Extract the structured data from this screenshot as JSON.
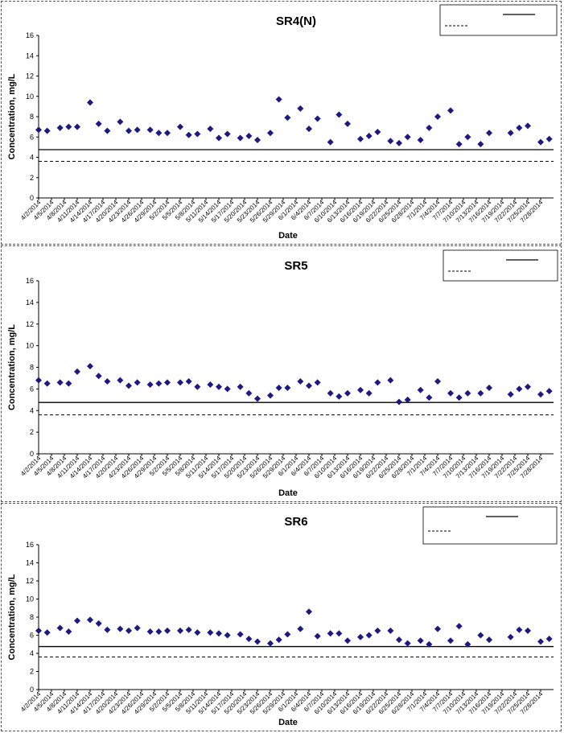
{
  "chart_data": [
    {
      "type": "scatter",
      "title": "SR4(N)",
      "xlabel": "Date",
      "ylabel": "Concentration, mg/L",
      "ylim": [
        0,
        16
      ],
      "yticks": [
        "0",
        "2",
        "4",
        "6",
        "8",
        "10",
        "12",
        "14",
        "16"
      ],
      "grid": false,
      "legend": "top-right",
      "marker_color": "#1a1a80",
      "reference_lines": [
        {
          "style": "solid",
          "value": 4.75
        },
        {
          "style": "dashed",
          "value": 3.6
        }
      ],
      "x_tick_labels": [
        "4/2/2014",
        "4/5/2014",
        "4/8/2014",
        "4/11/2014",
        "4/14/2014",
        "4/17/2014",
        "4/20/2014",
        "4/23/2014",
        "4/26/2014",
        "4/29/2014",
        "5/2/2014",
        "5/5/2014",
        "5/8/2014",
        "5/11/2014",
        "5/14/2014",
        "5/17/2014",
        "5/20/2014",
        "5/23/2014",
        "5/26/2014",
        "5/29/2014",
        "6/1/2014",
        "6/4/2014",
        "6/7/2014",
        "6/10/2014",
        "6/13/2014",
        "6/16/2014",
        "6/19/2014",
        "6/22/2014",
        "6/25/2014",
        "6/28/2014",
        "7/1/2014",
        "7/4/2014",
        "7/7/2014",
        "7/10/2014",
        "7/13/2014",
        "7/16/2014",
        "7/19/2014",
        "7/22/2014",
        "7/25/2014",
        "7/28/2014"
      ],
      "points": [
        {
          "x": "4/2/2014",
          "y": 6.7
        },
        {
          "x": "4/4/2014",
          "y": 6.6
        },
        {
          "x": "4/7/2014",
          "y": 6.9
        },
        {
          "x": "4/9/2014",
          "y": 7.0
        },
        {
          "x": "4/11/2014",
          "y": 7.0
        },
        {
          "x": "4/14/2014",
          "y": 9.4
        },
        {
          "x": "4/16/2014",
          "y": 7.3
        },
        {
          "x": "4/18/2014",
          "y": 6.6
        },
        {
          "x": "4/21/2014",
          "y": 7.5
        },
        {
          "x": "4/23/2014",
          "y": 6.6
        },
        {
          "x": "4/25/2014",
          "y": 6.7
        },
        {
          "x": "4/28/2014",
          "y": 6.7
        },
        {
          "x": "4/30/2014",
          "y": 6.4
        },
        {
          "x": "5/2/2014",
          "y": 6.4
        },
        {
          "x": "5/5/2014",
          "y": 7.0
        },
        {
          "x": "5/7/2014",
          "y": 6.2
        },
        {
          "x": "5/9/2014",
          "y": 6.3
        },
        {
          "x": "5/12/2014",
          "y": 6.8
        },
        {
          "x": "5/14/2014",
          "y": 5.9
        },
        {
          "x": "5/16/2014",
          "y": 6.3
        },
        {
          "x": "5/19/2014",
          "y": 5.9
        },
        {
          "x": "5/21/2014",
          "y": 6.1
        },
        {
          "x": "5/23/2014",
          "y": 5.7
        },
        {
          "x": "5/26/2014",
          "y": 6.4
        },
        {
          "x": "5/28/2014",
          "y": 9.7
        },
        {
          "x": "5/30/2014",
          "y": 7.9
        },
        {
          "x": "6/2/2014",
          "y": 8.8
        },
        {
          "x": "6/4/2014",
          "y": 6.8
        },
        {
          "x": "6/6/2014",
          "y": 7.8
        },
        {
          "x": "6/9/2014",
          "y": 5.5
        },
        {
          "x": "6/11/2014",
          "y": 8.2
        },
        {
          "x": "6/13/2014",
          "y": 7.3
        },
        {
          "x": "6/16/2014",
          "y": 5.8
        },
        {
          "x": "6/18/2014",
          "y": 6.1
        },
        {
          "x": "6/20/2014",
          "y": 6.5
        },
        {
          "x": "6/23/2014",
          "y": 5.6
        },
        {
          "x": "6/25/2014",
          "y": 5.4
        },
        {
          "x": "6/27/2014",
          "y": 6.0
        },
        {
          "x": "6/30/2014",
          "y": 5.7
        },
        {
          "x": "7/2/2014",
          "y": 6.9
        },
        {
          "x": "7/4/2014",
          "y": 8.0
        },
        {
          "x": "7/7/2014",
          "y": 8.6
        },
        {
          "x": "7/9/2014",
          "y": 5.3
        },
        {
          "x": "7/11/2014",
          "y": 6.0
        },
        {
          "x": "7/14/2014",
          "y": 5.3
        },
        {
          "x": "7/16/2014",
          "y": 6.4
        },
        {
          "x": "7/21/2014",
          "y": 6.4
        },
        {
          "x": "7/23/2014",
          "y": 6.9
        },
        {
          "x": "7/25/2014",
          "y": 7.1
        },
        {
          "x": "7/28/2014",
          "y": 5.5
        },
        {
          "x": "7/30/2014",
          "y": 5.8
        }
      ]
    },
    {
      "type": "scatter",
      "title": "SR5",
      "xlabel": "Date",
      "ylabel": "Concentration, mg/L",
      "ylim": [
        0,
        16
      ],
      "yticks": [
        "0",
        "2",
        "4",
        "6",
        "8",
        "10",
        "12",
        "14",
        "16"
      ],
      "grid": false,
      "legend": "top-right",
      "marker_color": "#1a1a80",
      "reference_lines": [
        {
          "style": "solid",
          "value": 4.75
        },
        {
          "style": "dashed",
          "value": 3.6
        }
      ],
      "x_tick_labels": [
        "4/2/2014",
        "4/5/2014",
        "4/8/2014",
        "4/11/2014",
        "4/14/2014",
        "4/17/2014",
        "4/20/2014",
        "4/23/2014",
        "4/26/2014",
        "4/29/2014",
        "5/2/2014",
        "5/5/2014",
        "5/8/2014",
        "5/11/2014",
        "5/14/2014",
        "5/17/2014",
        "5/20/2014",
        "5/23/2014",
        "5/26/2014",
        "5/29/2014",
        "6/1/2014",
        "6/4/2014",
        "6/7/2014",
        "6/10/2014",
        "6/13/2014",
        "6/16/2014",
        "6/19/2014",
        "6/22/2014",
        "6/25/2014",
        "6/28/2014",
        "7/1/2014",
        "7/4/2014",
        "7/7/2014",
        "7/10/2014",
        "7/13/2014",
        "7/16/2014",
        "7/19/2014",
        "7/22/2014",
        "7/25/2014",
        "7/28/2014"
      ],
      "points": [
        {
          "x": "4/2/2014",
          "y": 6.8
        },
        {
          "x": "4/4/2014",
          "y": 6.5
        },
        {
          "x": "4/7/2014",
          "y": 6.6
        },
        {
          "x": "4/9/2014",
          "y": 6.5
        },
        {
          "x": "4/11/2014",
          "y": 7.6
        },
        {
          "x": "4/14/2014",
          "y": 8.1
        },
        {
          "x": "4/16/2014",
          "y": 7.2
        },
        {
          "x": "4/18/2014",
          "y": 6.7
        },
        {
          "x": "4/21/2014",
          "y": 6.8
        },
        {
          "x": "4/23/2014",
          "y": 6.3
        },
        {
          "x": "4/25/2014",
          "y": 6.6
        },
        {
          "x": "4/28/2014",
          "y": 6.4
        },
        {
          "x": "4/30/2014",
          "y": 6.5
        },
        {
          "x": "5/2/2014",
          "y": 6.6
        },
        {
          "x": "5/5/2014",
          "y": 6.6
        },
        {
          "x": "5/7/2014",
          "y": 6.7
        },
        {
          "x": "5/9/2014",
          "y": 6.2
        },
        {
          "x": "5/12/2014",
          "y": 6.4
        },
        {
          "x": "5/14/2014",
          "y": 6.2
        },
        {
          "x": "5/16/2014",
          "y": 6.0
        },
        {
          "x": "5/19/2014",
          "y": 6.2
        },
        {
          "x": "5/21/2014",
          "y": 5.6
        },
        {
          "x": "5/23/2014",
          "y": 5.1
        },
        {
          "x": "5/26/2014",
          "y": 5.4
        },
        {
          "x": "5/28/2014",
          "y": 6.1
        },
        {
          "x": "5/30/2014",
          "y": 6.1
        },
        {
          "x": "6/2/2014",
          "y": 6.7
        },
        {
          "x": "6/4/2014",
          "y": 6.3
        },
        {
          "x": "6/6/2014",
          "y": 6.6
        },
        {
          "x": "6/9/2014",
          "y": 5.6
        },
        {
          "x": "6/11/2014",
          "y": 5.3
        },
        {
          "x": "6/13/2014",
          "y": 5.6
        },
        {
          "x": "6/16/2014",
          "y": 5.9
        },
        {
          "x": "6/18/2014",
          "y": 5.6
        },
        {
          "x": "6/20/2014",
          "y": 6.6
        },
        {
          "x": "6/23/2014",
          "y": 6.8
        },
        {
          "x": "6/25/2014",
          "y": 4.8
        },
        {
          "x": "6/27/2014",
          "y": 5.0
        },
        {
          "x": "6/30/2014",
          "y": 5.9
        },
        {
          "x": "7/2/2014",
          "y": 5.2
        },
        {
          "x": "7/4/2014",
          "y": 6.7
        },
        {
          "x": "7/7/2014",
          "y": 5.6
        },
        {
          "x": "7/9/2014",
          "y": 5.2
        },
        {
          "x": "7/11/2014",
          "y": 5.6
        },
        {
          "x": "7/14/2014",
          "y": 5.6
        },
        {
          "x": "7/16/2014",
          "y": 6.1
        },
        {
          "x": "7/21/2014",
          "y": 5.5
        },
        {
          "x": "7/23/2014",
          "y": 6.0
        },
        {
          "x": "7/25/2014",
          "y": 6.2
        },
        {
          "x": "7/28/2014",
          "y": 5.5
        },
        {
          "x": "7/30/2014",
          "y": 5.8
        }
      ]
    },
    {
      "type": "scatter",
      "title": "SR6",
      "xlabel": "Date",
      "ylabel": "Concentration, mg/L",
      "ylim": [
        0,
        16
      ],
      "yticks": [
        "0",
        "2",
        "4",
        "6",
        "8",
        "10",
        "12",
        "14",
        "16"
      ],
      "grid": false,
      "legend": "top-right",
      "marker_color": "#1a1a80",
      "reference_lines": [
        {
          "style": "solid",
          "value": 4.75
        },
        {
          "style": "dashed",
          "value": 3.6
        }
      ],
      "x_tick_labels": [
        "4/2/2014",
        "4/5/2014",
        "4/8/2014",
        "4/11/2014",
        "4/14/2014",
        "4/17/2014",
        "4/20/2014",
        "4/23/2014",
        "4/26/2014",
        "4/29/2014",
        "5/2/2014",
        "5/5/2014",
        "5/8/2014",
        "5/11/2014",
        "5/14/2014",
        "5/17/2014",
        "5/20/2014",
        "5/23/2014",
        "5/26/2014",
        "5/29/2014",
        "6/1/2014",
        "6/4/2014",
        "6/7/2014",
        "6/10/2014",
        "6/13/2014",
        "6/16/2014",
        "6/19/2014",
        "6/22/2014",
        "6/25/2014",
        "6/28/2014",
        "7/1/2014",
        "7/4/2014",
        "7/7/2014",
        "7/10/2014",
        "7/13/2014",
        "7/16/2014",
        "7/19/2014",
        "7/22/2014",
        "7/25/2014",
        "7/28/2014"
      ],
      "points": [
        {
          "x": "4/2/2014",
          "y": 6.5
        },
        {
          "x": "4/4/2014",
          "y": 6.3
        },
        {
          "x": "4/7/2014",
          "y": 6.8
        },
        {
          "x": "4/9/2014",
          "y": 6.4
        },
        {
          "x": "4/11/2014",
          "y": 7.6
        },
        {
          "x": "4/14/2014",
          "y": 7.7
        },
        {
          "x": "4/16/2014",
          "y": 7.3
        },
        {
          "x": "4/18/2014",
          "y": 6.6
        },
        {
          "x": "4/21/2014",
          "y": 6.7
        },
        {
          "x": "4/23/2014",
          "y": 6.5
        },
        {
          "x": "4/25/2014",
          "y": 6.8
        },
        {
          "x": "4/28/2014",
          "y": 6.4
        },
        {
          "x": "4/30/2014",
          "y": 6.4
        },
        {
          "x": "5/2/2014",
          "y": 6.5
        },
        {
          "x": "5/5/2014",
          "y": 6.5
        },
        {
          "x": "5/7/2014",
          "y": 6.6
        },
        {
          "x": "5/9/2014",
          "y": 6.3
        },
        {
          "x": "5/12/2014",
          "y": 6.3
        },
        {
          "x": "5/14/2014",
          "y": 6.2
        },
        {
          "x": "5/16/2014",
          "y": 6.0
        },
        {
          "x": "5/19/2014",
          "y": 6.1
        },
        {
          "x": "5/21/2014",
          "y": 5.6
        },
        {
          "x": "5/23/2014",
          "y": 5.3
        },
        {
          "x": "5/26/2014",
          "y": 5.1
        },
        {
          "x": "5/28/2014",
          "y": 5.5
        },
        {
          "x": "5/30/2014",
          "y": 6.1
        },
        {
          "x": "6/2/2014",
          "y": 6.7
        },
        {
          "x": "6/4/2014",
          "y": 8.6
        },
        {
          "x": "6/6/2014",
          "y": 5.9
        },
        {
          "x": "6/9/2014",
          "y": 6.2
        },
        {
          "x": "6/11/2014",
          "y": 6.2
        },
        {
          "x": "6/13/2014",
          "y": 5.4
        },
        {
          "x": "6/16/2014",
          "y": 5.8
        },
        {
          "x": "6/18/2014",
          "y": 6.0
        },
        {
          "x": "6/20/2014",
          "y": 6.5
        },
        {
          "x": "6/23/2014",
          "y": 6.5
        },
        {
          "x": "6/25/2014",
          "y": 5.5
        },
        {
          "x": "6/27/2014",
          "y": 5.1
        },
        {
          "x": "6/30/2014",
          "y": 5.4
        },
        {
          "x": "7/2/2014",
          "y": 5.0
        },
        {
          "x": "7/4/2014",
          "y": 6.7
        },
        {
          "x": "7/7/2014",
          "y": 5.4
        },
        {
          "x": "7/9/2014",
          "y": 7.0
        },
        {
          "x": "7/11/2014",
          "y": 5.0
        },
        {
          "x": "7/14/2014",
          "y": 6.0
        },
        {
          "x": "7/16/2014",
          "y": 5.5
        },
        {
          "x": "7/21/2014",
          "y": 5.8
        },
        {
          "x": "7/23/2014",
          "y": 6.6
        },
        {
          "x": "7/25/2014",
          "y": 6.5
        },
        {
          "x": "7/28/2014",
          "y": 5.3
        },
        {
          "x": "7/30/2014",
          "y": 5.6
        }
      ]
    }
  ]
}
